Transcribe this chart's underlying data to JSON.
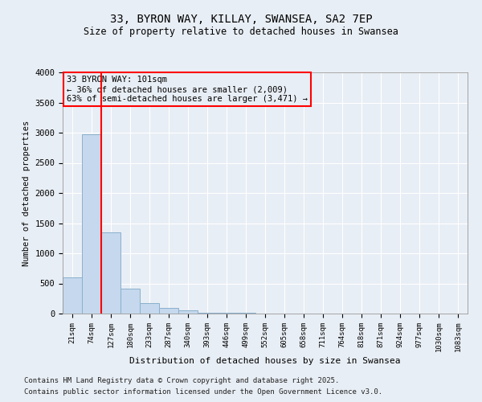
{
  "title1": "33, BYRON WAY, KILLAY, SWANSEA, SA2 7EP",
  "title2": "Size of property relative to detached houses in Swansea",
  "xlabel": "Distribution of detached houses by size in Swansea",
  "ylabel": "Number of detached properties",
  "footnote1": "Contains HM Land Registry data © Crown copyright and database right 2025.",
  "footnote2": "Contains public sector information licensed under the Open Government Licence v3.0.",
  "categories": [
    "21sqm",
    "74sqm",
    "127sqm",
    "180sqm",
    "233sqm",
    "287sqm",
    "340sqm",
    "393sqm",
    "446sqm",
    "499sqm",
    "552sqm",
    "605sqm",
    "658sqm",
    "711sqm",
    "764sqm",
    "818sqm",
    "871sqm",
    "924sqm",
    "977sqm",
    "1030sqm",
    "1083sqm"
  ],
  "values": [
    600,
    2980,
    1350,
    420,
    175,
    90,
    55,
    20,
    10,
    10,
    5,
    0,
    0,
    0,
    0,
    0,
    0,
    0,
    0,
    0,
    0
  ],
  "bar_color": "#c5d8ed",
  "bar_edge_color": "#8ab0cc",
  "background_color": "#e8eef5",
  "plot_bg_color": "#e8eef5",
  "grid_color": "#ffffff",
  "vline_color": "red",
  "vline_x": 1.5,
  "annotation_text": "33 BYRON WAY: 101sqm\n← 36% of detached houses are smaller (2,009)\n63% of semi-detached houses are larger (3,471) →",
  "annotation_box_edgecolor": "red",
  "ylim": [
    0,
    4000
  ],
  "yticks": [
    0,
    500,
    1000,
    1500,
    2000,
    2500,
    3000,
    3500,
    4000
  ]
}
